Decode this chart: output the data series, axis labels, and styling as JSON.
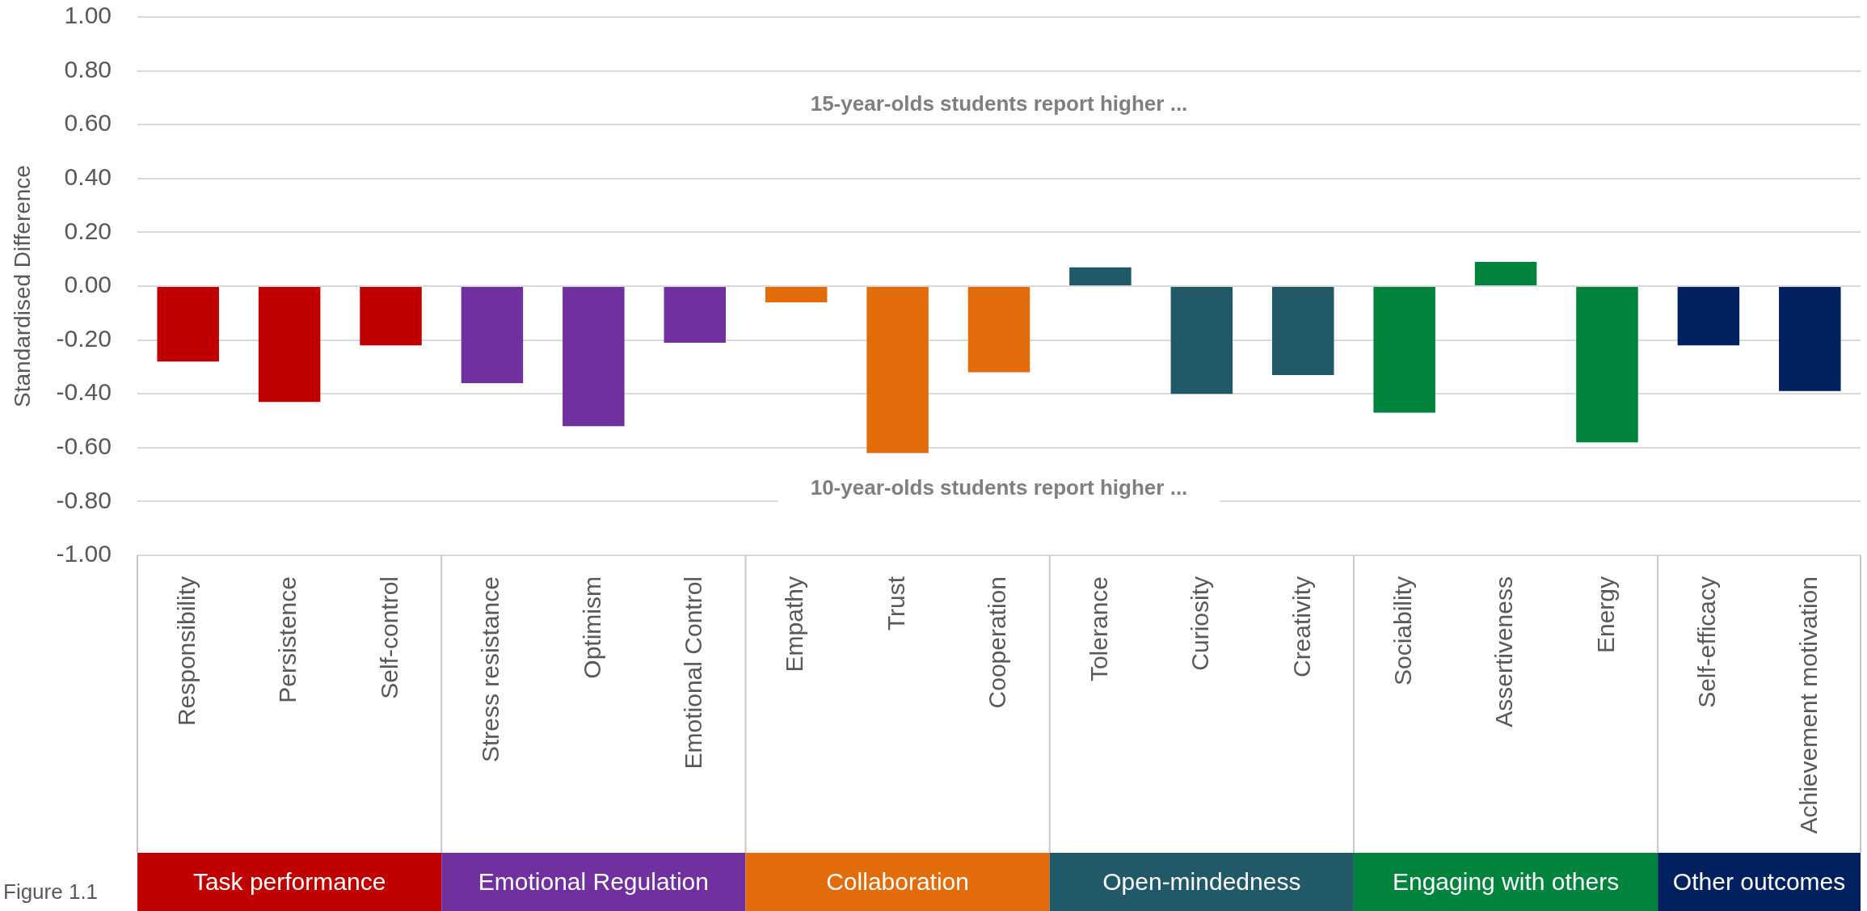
{
  "chart_data": {
    "type": "bar",
    "ylabel": "Standardised Difference",
    "categories": [
      "Responsibility",
      "Persistence",
      "Self-control",
      "Stress resistance",
      "Optimism",
      "Emotional Control",
      "Empathy",
      "Trust",
      "Cooperation",
      "Tolerance",
      "Curiosity",
      "Creativity",
      "Sociability",
      "Assertiveness",
      "Energy",
      "Self-efficacy",
      "Achievement motivation"
    ],
    "series": [
      {
        "name": "Task performance",
        "color": "#c00000",
        "values": [
          -0.28,
          -0.43,
          -0.22,
          null,
          null,
          null,
          null,
          null,
          null,
          null,
          null,
          null,
          null,
          null,
          null,
          null,
          null
        ]
      },
      {
        "name": "Emotional Regulation",
        "color": "#7030a0",
        "values": [
          null,
          null,
          null,
          -0.36,
          -0.52,
          -0.21,
          null,
          null,
          null,
          null,
          null,
          null,
          null,
          null,
          null,
          null,
          null
        ]
      },
      {
        "name": "Collaboration",
        "color": "#e36c0a",
        "values": [
          null,
          null,
          null,
          null,
          null,
          null,
          -0.06,
          -0.62,
          -0.32,
          null,
          null,
          null,
          null,
          null,
          null,
          null,
          null
        ]
      },
      {
        "name": "Open-mindedness",
        "color": "#215968",
        "values": [
          null,
          null,
          null,
          null,
          null,
          null,
          null,
          null,
          null,
          0.07,
          -0.4,
          -0.33,
          null,
          null,
          null,
          null,
          null
        ]
      },
      {
        "name": "Engaging with others",
        "color": "#00843d",
        "values": [
          null,
          null,
          null,
          null,
          null,
          null,
          null,
          null,
          null,
          null,
          null,
          null,
          -0.47,
          0.09,
          -0.58,
          null,
          null
        ]
      },
      {
        "name": "Other outcomes",
        "color": "#002060",
        "values": [
          null,
          null,
          null,
          null,
          null,
          null,
          null,
          null,
          null,
          null,
          null,
          null,
          null,
          null,
          null,
          -0.22,
          -0.39
        ]
      }
    ],
    "ylim": [
      -1,
      1
    ],
    "yticks": [
      {
        "value": -1,
        "label": "-1.00"
      },
      {
        "value": -0.8,
        "label": "-0.80"
      },
      {
        "value": -0.6,
        "label": "-0.60"
      },
      {
        "value": -0.4,
        "label": "-0.40"
      },
      {
        "value": -0.2,
        "label": "-0.20"
      },
      {
        "value": 0,
        "label": "0.00"
      },
      {
        "value": 0.2,
        "label": "0.20"
      },
      {
        "value": 0.4,
        "label": "0.40"
      },
      {
        "value": 0.6,
        "label": "0.60"
      },
      {
        "value": 0.8,
        "label": "0.80"
      },
      {
        "value": 1,
        "label": "1.00"
      }
    ],
    "grid": "y",
    "legend": false,
    "annotations": [
      "15-year-olds students report higher ...",
      "10-year-olds students report higher ...",
      "Figure 1.1"
    ]
  }
}
